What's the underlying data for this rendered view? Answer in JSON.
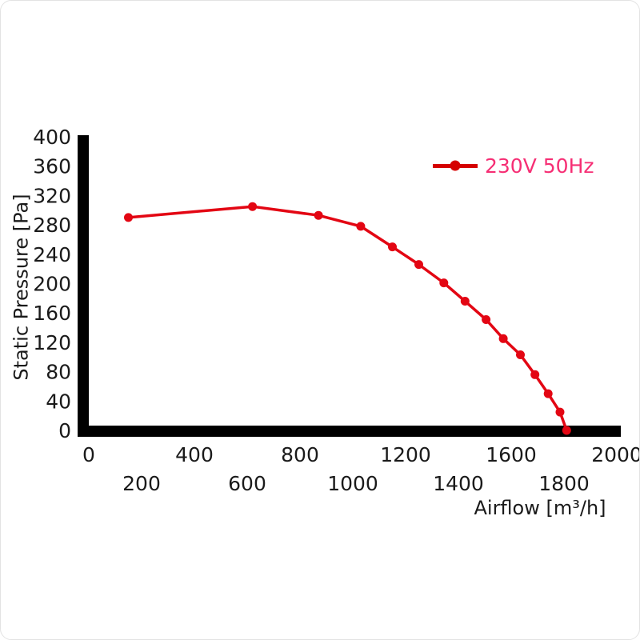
{
  "page": {
    "background": "#ffffff"
  },
  "chart_data": {
    "type": "line",
    "title": "",
    "xlabel": "Airflow [m³/h]",
    "ylabel": "Static Pressure [Pa]",
    "xlim": [
      0,
      2000
    ],
    "ylim": [
      0,
      400
    ],
    "x_ticks_row1": [
      0,
      400,
      800,
      1200,
      1600,
      2000
    ],
    "x_ticks_row2": [
      200,
      600,
      1000,
      1400,
      1800
    ],
    "y_ticks": [
      0,
      40,
      80,
      120,
      160,
      200,
      240,
      280,
      320,
      360,
      400
    ],
    "grid": false,
    "axis_color": "#000000",
    "tick_label_color": "#1a1a1a",
    "legend": {
      "position": "top-right",
      "entries": [
        {
          "label": "230V 50Hz",
          "marker_color": "#d50000",
          "text_color": "#f62e74"
        }
      ]
    },
    "series": [
      {
        "name": "230V 50Hz",
        "color": "#e30613",
        "marker": "circle",
        "points": [
          {
            "x": 150,
            "y": 290
          },
          {
            "x": 620,
            "y": 305
          },
          {
            "x": 870,
            "y": 293
          },
          {
            "x": 1030,
            "y": 278
          },
          {
            "x": 1150,
            "y": 250
          },
          {
            "x": 1250,
            "y": 226
          },
          {
            "x": 1345,
            "y": 201
          },
          {
            "x": 1425,
            "y": 176
          },
          {
            "x": 1505,
            "y": 151
          },
          {
            "x": 1570,
            "y": 125
          },
          {
            "x": 1635,
            "y": 103
          },
          {
            "x": 1690,
            "y": 76
          },
          {
            "x": 1740,
            "y": 50
          },
          {
            "x": 1785,
            "y": 25
          },
          {
            "x": 1810,
            "y": 0
          }
        ]
      }
    ]
  }
}
